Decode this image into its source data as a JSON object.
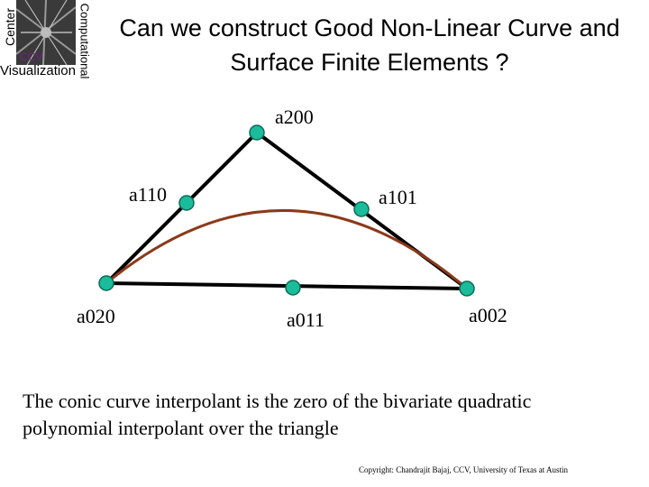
{
  "logo": {
    "vertical_left": "Center",
    "vertical_right": "Computational",
    "badge": "CCV",
    "bottom": "Visualization"
  },
  "title": {
    "line1": "Can we construct Good Non-Linear Curve and",
    "line2": "Surface Finite Elements ?"
  },
  "diagram": {
    "nodes": {
      "a200": "a200",
      "a110": "a110",
      "a101": "a101",
      "a020": "a020",
      "a011": "a011",
      "a002": "a002"
    },
    "colors": {
      "node_fill": "#1abc9c",
      "node_stroke": "#0b6b54",
      "edge": "#000000",
      "curve": "#8b3a1a"
    }
  },
  "caption": {
    "line1": "The conic curve interpolant is the zero of the bivariate quadratic",
    "line2": "polynomial interpolant over the triangle"
  },
  "copyright": "Copyright: Chandrajit Bajaj, CCV, University of Texas at Austin"
}
